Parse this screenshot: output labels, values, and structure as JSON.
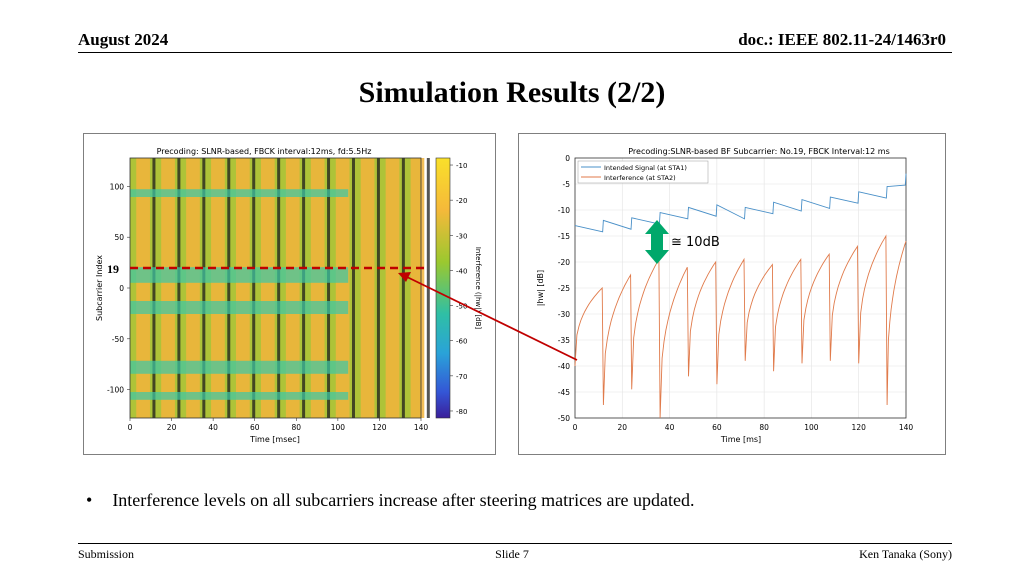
{
  "header": {
    "date": "August 2024",
    "doc": "doc.: IEEE 802.11-24/1463r0"
  },
  "slide_title": "Simulation Results (2/2)",
  "left_figure": {
    "title": "Precoding: SLNR-based,  FBCK interval:12ms,  fd:5.5Hz",
    "xlabel": "Time [msec]",
    "ylabel": "Subcarrier Index",
    "xticks": [
      "0",
      "20",
      "40",
      "60",
      "80",
      "100",
      "120",
      "140"
    ],
    "yticks": [
      "100",
      "50",
      "0",
      "-50",
      "-100"
    ],
    "colorbar_label": "Interference (|hw|) [dB]",
    "colorbar_ticks": [
      "-10",
      "-20",
      "-30",
      "-40",
      "-50",
      "-60",
      "-70",
      "-80"
    ],
    "marker_label": "19"
  },
  "right_figure": {
    "title": "Precoding:SLNR-based BF Subcarrier: No.19,  FBCK Interval:12 ms",
    "xlabel": "Time [ms]",
    "ylabel": "|hw| [dB]",
    "xticks": [
      "0",
      "20",
      "40",
      "60",
      "80",
      "100",
      "120",
      "140"
    ],
    "yticks": [
      "0",
      "-5",
      "-10",
      "-15",
      "-20",
      "-25",
      "-30",
      "-35",
      "-40",
      "-45",
      "-50"
    ],
    "legend": [
      "Intended Signal (at STA1)",
      "Interference (at STA2)"
    ],
    "annotation": "≅ 10dB"
  },
  "colors": {
    "signal": "#4a90c8",
    "interference": "#e07a4a",
    "marker": "#c00000",
    "arrow": "#00a86b"
  },
  "chart_data": {
    "type": "line",
    "title": "Precoding:SLNR-based BF Subcarrier: No.19,  FBCK Interval:12 ms",
    "xlabel": "Time [ms]",
    "ylabel": "|hw| [dB]",
    "xlim": [
      0,
      140
    ],
    "ylim": [
      -50,
      0
    ],
    "grid": true,
    "legend_position": "top-left",
    "feedback_times": [
      12,
      24,
      36,
      48,
      60,
      72,
      84,
      96,
      108,
      120,
      132
    ],
    "series": [
      {
        "name": "Intended Signal (at STA1)",
        "x": [
          0,
          12,
          24,
          36,
          48,
          60,
          72,
          84,
          96,
          108,
          120,
          132,
          140
        ],
        "y": [
          -13,
          -12,
          -11.5,
          -10.5,
          -9.5,
          -9,
          -9.5,
          -8.5,
          -8,
          -7.5,
          -6.5,
          -5.5,
          -3
        ]
      },
      {
        "name": "Interference (at STA2)",
        "peaks_x": [
          11.5,
          23.5,
          35.5,
          47.5,
          59.5,
          71.5,
          83.5,
          95.5,
          107.5,
          119.5,
          131.5,
          140
        ],
        "peaks_y": [
          -25,
          -22.5,
          -19.5,
          -21,
          -20,
          -19.5,
          -20.5,
          -19.5,
          -18.5,
          -17,
          -15,
          -16
        ],
        "troughs_x": [
          0,
          12,
          24,
          36,
          48,
          60,
          72,
          84,
          96,
          108,
          120,
          132
        ],
        "troughs_y": [
          -40,
          -47.5,
          -44.5,
          -50,
          -42,
          -43.5,
          -39,
          -41,
          -39.5,
          -39,
          -39.5,
          -47.5
        ]
      }
    ]
  }
}
